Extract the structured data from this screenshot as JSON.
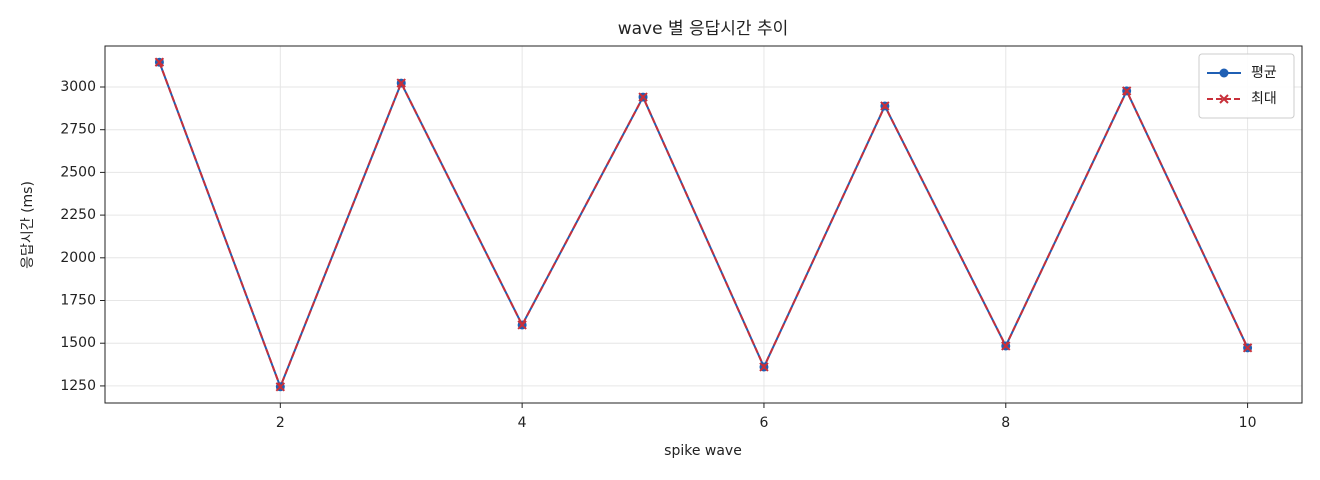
{
  "chart_data": {
    "type": "line",
    "title": "wave 별 응답시간 추이",
    "x_label": "spike wave",
    "y_label": "응답시간 (ms)",
    "x": [
      1,
      2,
      3,
      4,
      5,
      6,
      7,
      8,
      9,
      10
    ],
    "series": [
      {
        "name": "평균",
        "color": "#1f5fb4",
        "marker": "o",
        "linestyle": "solid",
        "values": [
          3145,
          1245,
          3023,
          1607,
          2941,
          1361,
          2889,
          1484,
          2977,
          1473
        ]
      },
      {
        "name": "최대",
        "color": "#c8303a",
        "marker": "x",
        "linestyle": "dashed",
        "values": [
          3145,
          1245,
          3023,
          1607,
          2941,
          1361,
          2889,
          1484,
          2977,
          1473
        ]
      }
    ],
    "xlim": [
      0.55,
      10.45
    ],
    "ylim": [
      1150,
      3240
    ],
    "xticks": [
      2,
      4,
      6,
      8,
      10
    ],
    "yticks": [
      1250,
      1500,
      1750,
      2000,
      2250,
      2500,
      2750,
      3000
    ],
    "grid": true,
    "legend": "upper right"
  }
}
